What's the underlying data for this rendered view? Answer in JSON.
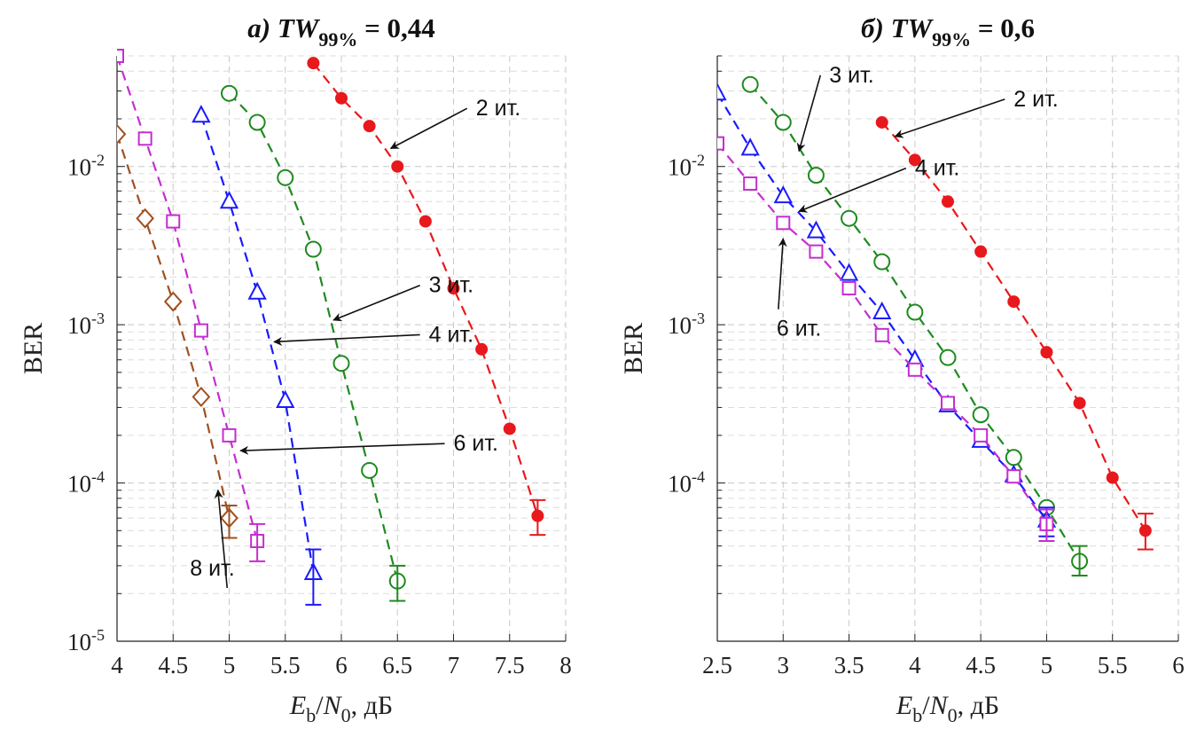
{
  "chart_data": [
    {
      "type": "line",
      "title": {
        "prefix": "а) ",
        "var": "TW",
        "sub": "99%",
        "suffix": " = 0,44"
      },
      "xlabel": {
        "var": "E",
        "sub": "b",
        "mid": "/",
        "var2": "N",
        "sub2": "0",
        "unit": ", дБ"
      },
      "ylabel": "BER",
      "xlim": [
        4,
        8
      ],
      "ylim": [
        1e-05,
        0.05
      ],
      "y_scale": "log",
      "grid": true,
      "xticks": [
        "4",
        "4.5",
        "5",
        "5.5",
        "6",
        "6.5",
        "7",
        "7.5",
        "8"
      ],
      "yticks": [
        {
          "base": "10",
          "exp": "-5"
        },
        {
          "base": "10",
          "exp": "-4"
        },
        {
          "base": "10",
          "exp": "-3"
        },
        {
          "base": "10",
          "exp": "-2"
        }
      ],
      "series": [
        {
          "name": "2 ит.",
          "color": "#e8191c",
          "marker": "dot",
          "x": [
            5.75,
            6.0,
            6.25,
            6.5,
            6.75,
            7.0,
            7.25,
            7.5,
            7.75
          ],
          "y": [
            0.045,
            0.027,
            0.018,
            0.01,
            0.0045,
            0.0017,
            0.0007,
            0.00022,
            6.2e-05
          ],
          "err_last": [
            4.7e-05,
            7.8e-05
          ]
        },
        {
          "name": "3 ит.",
          "color": "#1f8a1f",
          "marker": "circle",
          "x": [
            5.0,
            5.25,
            5.5,
            5.75,
            6.0,
            6.25,
            6.5
          ],
          "y": [
            0.029,
            0.019,
            0.0085,
            0.003,
            0.00057,
            0.00012,
            2.4e-05
          ],
          "err_last": [
            1.8e-05,
            3e-05
          ]
        },
        {
          "name": "4 ит.",
          "color": "#1a1aff",
          "marker": "triangle",
          "x": [
            4.75,
            5.0,
            5.25,
            5.5,
            5.75
          ],
          "y": [
            0.021,
            0.006,
            0.0016,
            0.00033,
            2.7e-05
          ],
          "err_last": [
            1.7e-05,
            3.8e-05
          ]
        },
        {
          "name": "6 ит.",
          "color": "#c42ed0",
          "marker": "square",
          "x": [
            4.0,
            4.25,
            4.5,
            4.75,
            5.0,
            5.25
          ],
          "y": [
            0.05,
            0.015,
            0.0045,
            0.00092,
            0.0002,
            4.3e-05
          ],
          "err_last": [
            3.2e-05,
            5.5e-05
          ]
        },
        {
          "name": "8 ит.",
          "color": "#a0501f",
          "marker": "diamond",
          "x": [
            4.0,
            4.25,
            4.5,
            4.75,
            5.0
          ],
          "y": [
            0.016,
            0.0047,
            0.0014,
            0.00035,
            6e-05
          ],
          "err_last": [
            4.5e-05,
            7.2e-05
          ]
        }
      ],
      "annotations": [
        {
          "text": "2 ит.",
          "tx": 7.2,
          "ty": 0.021,
          "ax": 6.44,
          "ay": 0.013
        },
        {
          "text": "3 ит.",
          "tx": 6.78,
          "ty": 0.0016,
          "ax": 5.93,
          "ay": 0.00107
        },
        {
          "text": "4 ит.",
          "tx": 6.78,
          "ty": 0.00078,
          "ax": 5.4,
          "ay": 0.00078
        },
        {
          "text": "6 ит.",
          "tx": 7.0,
          "ty": 0.00016,
          "ax": 5.1,
          "ay": 0.00016
        },
        {
          "text": "8 ит.",
          "tx": 4.65,
          "ty": 2.6e-05,
          "ax": 4.9,
          "ay": 9e-05
        }
      ]
    },
    {
      "type": "line",
      "title": {
        "prefix": "б) ",
        "var": "TW",
        "sub": "99%",
        "suffix": " = 0,6"
      },
      "xlabel": {
        "var": "E",
        "sub": "b",
        "mid": "/",
        "var2": "N",
        "sub2": "0",
        "unit": ", дБ"
      },
      "ylabel": "BER",
      "xlim": [
        2.5,
        6
      ],
      "ylim": [
        1e-05,
        0.05
      ],
      "y_scale": "log",
      "grid": true,
      "xticks": [
        "2.5",
        "3",
        "3.5",
        "4",
        "4.5",
        "5",
        "5.5",
        "6"
      ],
      "yticks": [
        {
          "base": "10",
          "exp": "-4"
        },
        {
          "base": "10",
          "exp": "-3"
        },
        {
          "base": "10",
          "exp": "-2"
        }
      ],
      "series": [
        {
          "name": "2 ит.",
          "color": "#e8191c",
          "marker": "dot",
          "x": [
            3.75,
            4.0,
            4.25,
            4.5,
            4.75,
            5.0,
            5.25,
            5.5,
            5.75
          ],
          "y": [
            0.019,
            0.011,
            0.006,
            0.0029,
            0.0014,
            0.00067,
            0.00032,
            0.000108,
            5e-05
          ],
          "err_last": [
            3.8e-05,
            6.4e-05
          ]
        },
        {
          "name": "3 ит.",
          "color": "#1f8a1f",
          "marker": "circle",
          "x": [
            2.75,
            3.0,
            3.25,
            3.5,
            3.75,
            4.0,
            4.25,
            4.5,
            4.75,
            5.0,
            5.25
          ],
          "y": [
            0.033,
            0.019,
            0.0088,
            0.0047,
            0.0025,
            0.0012,
            0.00062,
            0.00027,
            0.000145,
            7e-05,
            3.2e-05
          ],
          "err_last": [
            2.6e-05,
            4e-05
          ]
        },
        {
          "name": "4 ит.",
          "color": "#1a1aff",
          "marker": "triangle",
          "x": [
            2.5,
            2.75,
            3.0,
            3.25,
            3.5,
            3.75,
            4.0,
            4.25,
            4.5,
            4.75,
            5.0
          ],
          "y": [
            0.029,
            0.013,
            0.0065,
            0.0039,
            0.0021,
            0.0012,
            0.0006,
            0.00031,
            0.000185,
            0.000112,
            5.8e-05
          ],
          "err_last": [
            4.6e-05,
            7e-05
          ]
        },
        {
          "name": "6 ит.",
          "color": "#c42ed0",
          "marker": "square",
          "x": [
            2.5,
            2.75,
            3.0,
            3.25,
            3.5,
            3.75,
            4.0,
            4.25,
            4.5,
            4.75,
            5.0
          ],
          "y": [
            0.014,
            0.0078,
            0.0044,
            0.0029,
            0.0017,
            0.00086,
            0.00052,
            0.00032,
            0.0002,
            0.00011,
            5.5e-05
          ],
          "err_last": [
            4.3e-05,
            6.8e-05
          ]
        }
      ],
      "annotations": [
        {
          "text": "2 ит.",
          "tx": 4.75,
          "ty": 0.024,
          "ax": 3.85,
          "ay": 0.0155
        },
        {
          "text": "3 ит.",
          "tx": 3.35,
          "ty": 0.034,
          "ax": 3.12,
          "ay": 0.0125
        },
        {
          "text": "4 ит.",
          "tx": 4.0,
          "ty": 0.0088,
          "ax": 3.12,
          "ay": 0.0052
        },
        {
          "text": "6 ит.",
          "tx": 2.95,
          "ty": 0.00085,
          "ax": 3.0,
          "ay": 0.0035
        }
      ]
    }
  ]
}
